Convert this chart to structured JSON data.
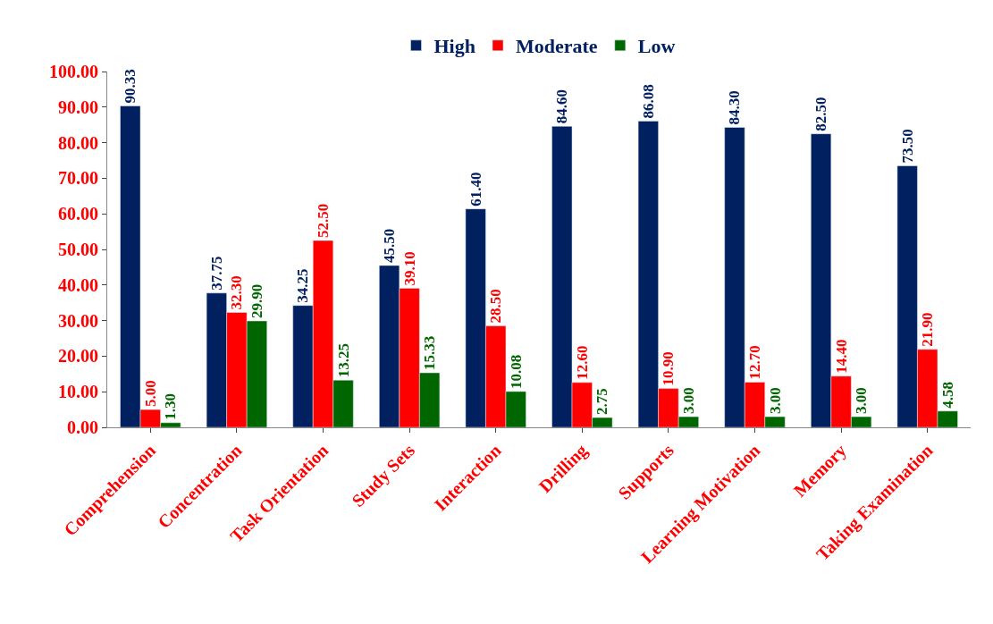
{
  "chart_data": {
    "type": "bar",
    "categories": [
      "Comprehension",
      "Concentration",
      "Task Orientation",
      "Study Sets",
      "Interaction",
      "Drilling",
      "Supports",
      "Learning Motivation",
      "Memory",
      "Taking Examination"
    ],
    "series": [
      {
        "name": "High",
        "color": "#002060",
        "values": [
          90.33,
          37.75,
          34.25,
          45.5,
          61.4,
          84.6,
          86.08,
          84.3,
          82.5,
          73.5
        ],
        "value_labels": [
          "90.33",
          "37.75",
          "34.25",
          "45.50",
          "61.40",
          "84.60",
          "86.08",
          "84.30",
          "82.50",
          "73.50"
        ]
      },
      {
        "name": "Moderate",
        "color": "#ff0000",
        "values": [
          5.0,
          32.3,
          52.5,
          39.1,
          28.5,
          12.6,
          10.9,
          12.7,
          14.4,
          21.9
        ],
        "value_labels": [
          "5.00",
          "32.30",
          "52.50",
          "39.10",
          "28.50",
          "12.60",
          "10.90",
          "12.70",
          "14.40",
          "21.90"
        ]
      },
      {
        "name": "Low",
        "color": "#006600",
        "values": [
          1.3,
          29.9,
          13.25,
          15.33,
          10.08,
          2.75,
          3.0,
          3.0,
          3.0,
          4.58
        ],
        "value_labels": [
          "1.30",
          "29.90",
          "13.25",
          "15.33",
          "10.08",
          "2.75",
          "3.00",
          "3.00",
          "3.00",
          "4.58"
        ]
      }
    ],
    "ylim": [
      0,
      100
    ],
    "yticks": [
      {
        "value": 0,
        "label": "0.00"
      },
      {
        "value": 10,
        "label": "10.00"
      },
      {
        "value": 20,
        "label": "20.00"
      },
      {
        "value": 30,
        "label": "30.00"
      },
      {
        "value": 40,
        "label": "40.00"
      },
      {
        "value": 50,
        "label": "50.00"
      },
      {
        "value": 60,
        "label": "60.00"
      },
      {
        "value": 70,
        "label": "70.00"
      },
      {
        "value": 80,
        "label": "80.00"
      },
      {
        "value": 90,
        "label": "90.00"
      },
      {
        "value": 100,
        "label": "100.00"
      }
    ],
    "legend": "top"
  }
}
